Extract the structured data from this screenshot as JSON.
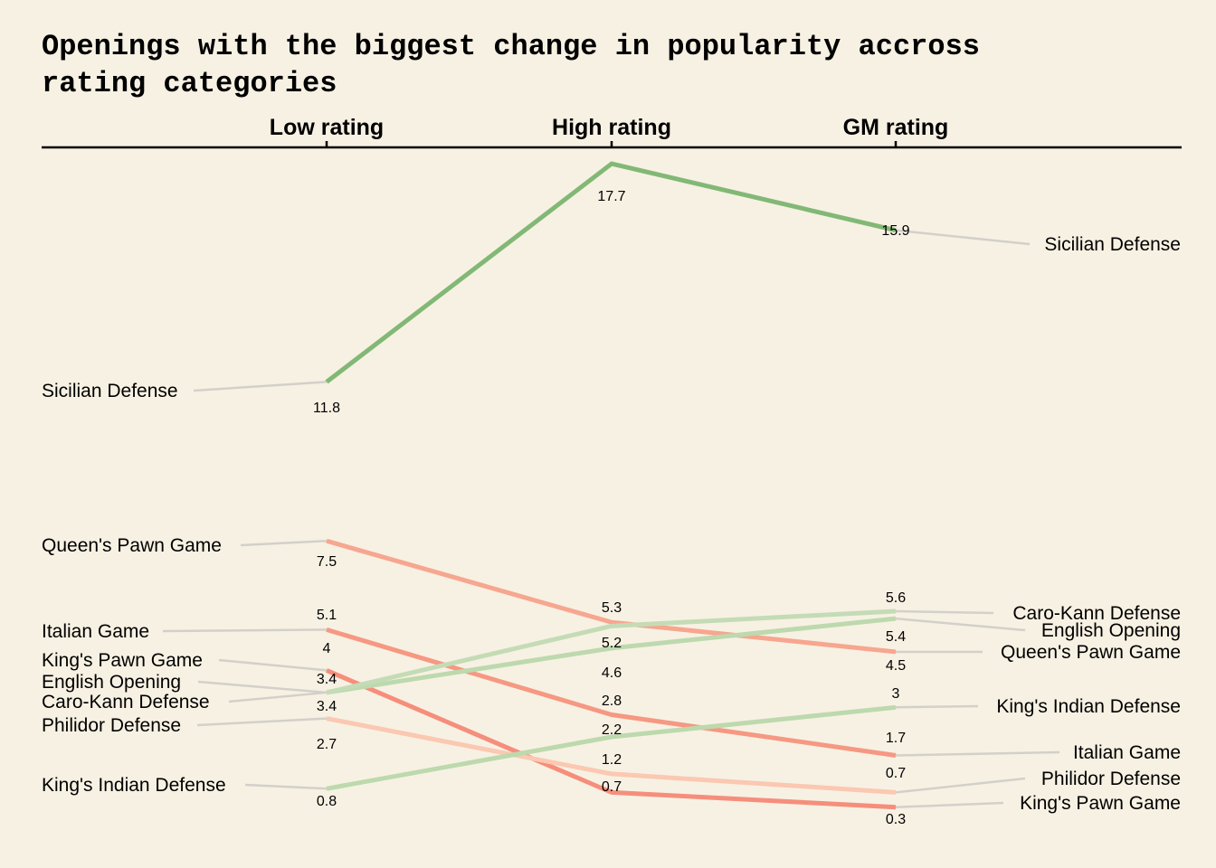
{
  "chart_data": {
    "type": "line",
    "subtype": "slope",
    "title_lines": [
      "Openings with the biggest change in popularity accross",
      "rating categories"
    ],
    "categories": [
      "Low rating",
      "High rating",
      "GM rating"
    ],
    "ylim": [
      0,
      18
    ],
    "grid": false,
    "legend": "none (series labelled at both ends)",
    "series": [
      {
        "name": "Sicilian Defense",
        "values": [
          11.8,
          17.7,
          15.9
        ],
        "labels": [
          "11.8",
          "17.7",
          "15.9"
        ],
        "color": "#82b876",
        "trend": "up"
      },
      {
        "name": "Queen's Pawn Game",
        "values": [
          7.5,
          5.3,
          4.5
        ],
        "labels": [
          "7.5",
          "5.3",
          "4.5"
        ],
        "color": "#f7a68f",
        "trend": "down"
      },
      {
        "name": "Italian Game",
        "values": [
          5.1,
          2.8,
          1.7
        ],
        "labels": [
          "5.1",
          "2.8",
          "1.7"
        ],
        "color": "#f69882",
        "trend": "down"
      },
      {
        "name": "King's Pawn Game",
        "values": [
          4.0,
          0.7,
          0.3
        ],
        "labels": [
          "4",
          "0.7",
          "0.3"
        ],
        "color": "#f68e7c",
        "trend": "down"
      },
      {
        "name": "English Opening",
        "values": [
          3.4,
          4.6,
          5.4
        ],
        "labels": [
          "3.4",
          "4.6",
          "5.4"
        ],
        "color": "#bdd9ae",
        "trend": "up"
      },
      {
        "name": "Caro-Kann Defense",
        "values": [
          3.4,
          5.2,
          5.6
        ],
        "labels": [
          "3.4",
          "5.2",
          "5.6"
        ],
        "color": "#c4dcb6",
        "trend": "up"
      },
      {
        "name": "Philidor Defense",
        "values": [
          2.7,
          1.2,
          0.7
        ],
        "labels": [
          "2.7",
          "1.2",
          "0.7"
        ],
        "color": "#fbc8b2",
        "trend": "down"
      },
      {
        "name": "King's Indian Defense",
        "values": [
          0.8,
          2.2,
          3.0
        ],
        "labels": [
          "0.8",
          "2.2",
          "3"
        ],
        "color": "#bdd9ae",
        "trend": "up"
      }
    ],
    "connector_color": "#d3d0ca"
  }
}
